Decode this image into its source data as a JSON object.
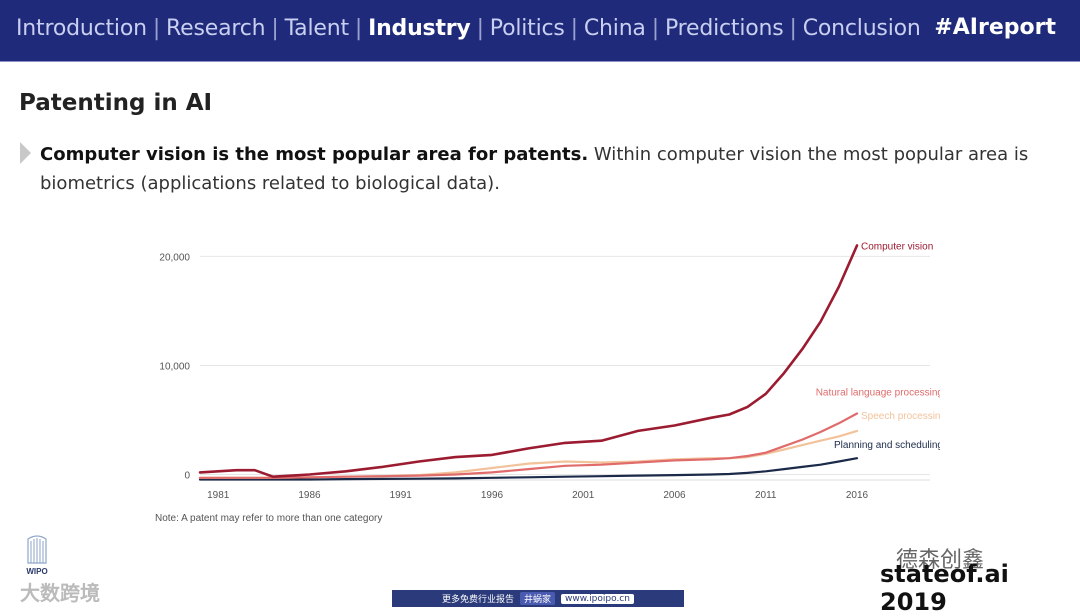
{
  "header": {
    "nav": [
      "Introduction",
      "Research",
      "Talent",
      "Industry",
      "Politics",
      "China",
      "Predictions",
      "Conclusion"
    ],
    "active_index": 3,
    "hashtag": "#AIreport"
  },
  "slide": {
    "title": "Patenting in AI",
    "bullet_bold": "Computer vision is the most popular area for patents.",
    "bullet_rest": " Within computer vision the most popular area is biometrics (applications related to biological data)."
  },
  "colors": {
    "computer_vision": "#9b1b30",
    "nlp": "#e06b6b",
    "speech": "#f2c29b",
    "planning": "#1c2a4a",
    "nav_bg": "#1f2a7a"
  },
  "chart_data": {
    "type": "line",
    "title": "",
    "xlabel": "",
    "ylabel": "",
    "x": [
      1980,
      1982,
      1983,
      1984,
      1986,
      1988,
      1990,
      1992,
      1994,
      1996,
      1998,
      2000,
      2002,
      2004,
      2006,
      2008,
      2009,
      2010,
      2011,
      2012,
      2013,
      2014,
      2015,
      2016
    ],
    "xticks": [
      1981,
      1986,
      1991,
      1996,
      2001,
      2006,
      2011,
      2016
    ],
    "xtick_labels": [
      "1981",
      "1986",
      "1991",
      "1996",
      "2001",
      "2006",
      "2011",
      "2016"
    ],
    "yticks": [
      0,
      10000,
      20000
    ],
    "ytick_labels": [
      "0",
      "10,000",
      "20,000"
    ],
    "xlim": [
      1980,
      2020
    ],
    "ylim": [
      -500,
      21500
    ],
    "series": [
      {
        "name": "Computer vision",
        "color": "#9b1b30",
        "values": [
          200,
          400,
          400,
          -200,
          0,
          300,
          700,
          1200,
          1600,
          1800,
          2400,
          2900,
          3100,
          4000,
          4500,
          5200,
          5500,
          6200,
          7400,
          9300,
          11500,
          14000,
          17200,
          21000
        ]
      },
      {
        "name": "Natural language processing",
        "color": "#e06b6b",
        "values": [
          -300,
          -300,
          -300,
          -300,
          -250,
          -200,
          -150,
          -100,
          0,
          200,
          500,
          800,
          900,
          1100,
          1300,
          1400,
          1500,
          1700,
          2000,
          2600,
          3200,
          3900,
          4700,
          5600
        ]
      },
      {
        "name": "Speech processing",
        "color": "#f2c29b",
        "values": [
          -300,
          -300,
          -300,
          -300,
          -250,
          -200,
          -150,
          -50,
          200,
          600,
          1000,
          1200,
          1100,
          1200,
          1400,
          1500,
          1500,
          1600,
          1900,
          2300,
          2700,
          3100,
          3500,
          4000
        ]
      },
      {
        "name": "Planning and scheduling",
        "color": "#1c2a4a",
        "values": [
          -450,
          -450,
          -450,
          -450,
          -450,
          -420,
          -400,
          -380,
          -350,
          -300,
          -250,
          -200,
          -150,
          -100,
          -50,
          0,
          50,
          150,
          300,
          500,
          700,
          900,
          1200,
          1500
        ]
      }
    ],
    "note": "Note: A patent may refer to more than one category",
    "grid": true
  },
  "footer": {
    "wipo": "WIPO",
    "left_watermark": "大数跨境",
    "center_text": "更多免费行业报告",
    "center_chip": "井蜗家",
    "center_url": "www.ipoipo.cn",
    "brand": "德森创鑫",
    "stateof": "stateof.ai 2019"
  }
}
